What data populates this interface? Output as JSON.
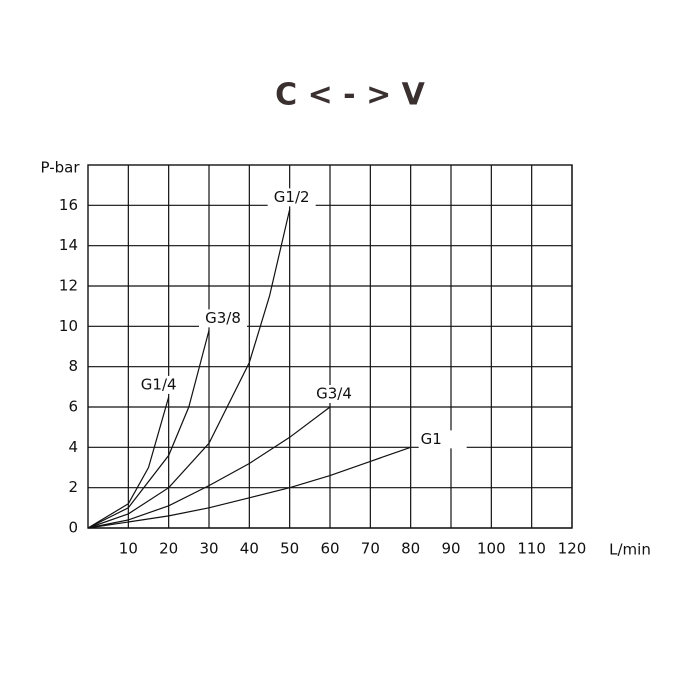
{
  "chart_data": {
    "type": "line",
    "title": "C < - > V",
    "y_label": "P-bar",
    "x_label": "L/min",
    "xlim": [
      0,
      120
    ],
    "xticks": [
      10,
      20,
      30,
      40,
      50,
      60,
      70,
      80,
      90,
      100,
      110,
      120
    ],
    "ylim": [
      0,
      18
    ],
    "yticks": [
      0,
      2,
      4,
      6,
      8,
      10,
      12,
      14,
      16
    ],
    "grid": true,
    "series": [
      {
        "name": "G1/4",
        "color": "#111111",
        "x": [
          0,
          10,
          15,
          20
        ],
        "values": [
          0,
          1.2,
          3.0,
          6.5
        ]
      },
      {
        "name": "G3/8",
        "color": "#111111",
        "x": [
          0,
          10,
          20,
          25,
          30
        ],
        "values": [
          0,
          1.0,
          3.6,
          6.0,
          9.8
        ]
      },
      {
        "name": "G1/2",
        "color": "#111111",
        "x": [
          0,
          10,
          20,
          30,
          40,
          45,
          50
        ],
        "values": [
          0,
          0.7,
          2.0,
          4.2,
          8.2,
          11.5,
          15.8
        ]
      },
      {
        "name": "G3/4",
        "color": "#111111",
        "x": [
          0,
          10,
          20,
          30,
          40,
          50,
          60
        ],
        "values": [
          0,
          0.4,
          1.1,
          2.1,
          3.2,
          4.5,
          6.0
        ]
      },
      {
        "name": "G1",
        "color": "#111111",
        "x": [
          0,
          10,
          20,
          30,
          40,
          50,
          60,
          70,
          80
        ],
        "values": [
          0,
          0.3,
          0.6,
          1.0,
          1.5,
          2.0,
          2.6,
          3.3,
          4.0
        ]
      }
    ]
  }
}
